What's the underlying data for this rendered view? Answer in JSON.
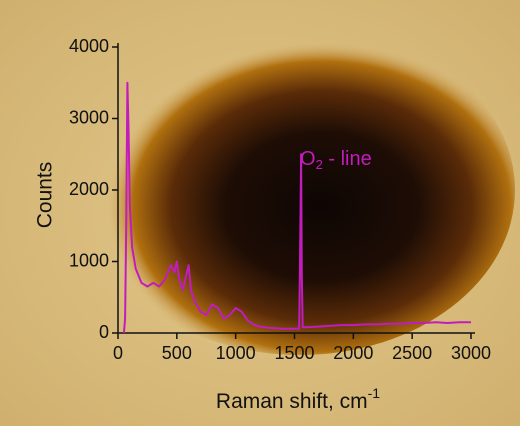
{
  "chart_data": {
    "type": "line",
    "x_label": [
      "Raman shift, cm",
      "-1"
    ],
    "y_label": "Counts",
    "annotation": [
      "O",
      "2",
      " - line"
    ],
    "xlim": [
      0,
      3000
    ],
    "xticks": [
      0,
      500,
      1000,
      1500,
      2000,
      2500,
      3000
    ],
    "ylim": [
      0,
      4000
    ],
    "yticks": [
      0,
      1000,
      2000,
      3000,
      4000
    ],
    "x": [
      50,
      60,
      70,
      80,
      90,
      100,
      120,
      150,
      200,
      250,
      300,
      350,
      400,
      450,
      480,
      500,
      520,
      550,
      580,
      600,
      620,
      650,
      700,
      750,
      800,
      850,
      900,
      950,
      1000,
      1050,
      1100,
      1150,
      1200,
      1300,
      1400,
      1500,
      1540,
      1550,
      1556,
      1562,
      1570,
      1600,
      1700,
      1800,
      1900,
      2000,
      2100,
      2200,
      2300,
      2400,
      2500,
      2600,
      2700,
      2800,
      2900,
      3000
    ],
    "series": [
      {
        "color": "#c21cbd",
        "values": [
          0,
          200,
          1500,
          3500,
          2800,
          1800,
          1200,
          900,
          700,
          650,
          700,
          650,
          750,
          950,
          850,
          1000,
          750,
          600,
          800,
          950,
          600,
          450,
          300,
          250,
          400,
          350,
          200,
          250,
          350,
          300,
          180,
          120,
          90,
          70,
          60,
          60,
          60,
          1500,
          2500,
          800,
          80,
          80,
          90,
          100,
          110,
          110,
          120,
          120,
          130,
          130,
          140,
          140,
          150,
          140,
          150,
          150
        ]
      }
    ]
  }
}
